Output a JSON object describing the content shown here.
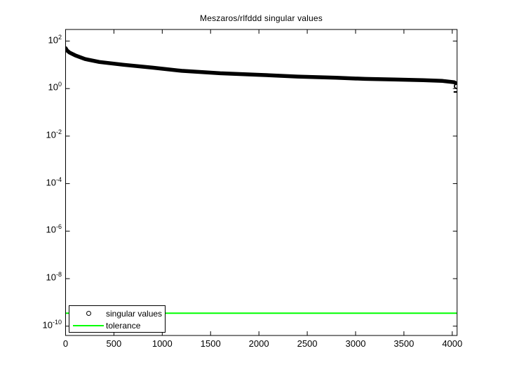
{
  "title": "Meszaros/rlfddd singular values",
  "colors": {
    "curve": "#000000",
    "tolerance": "#00ff00",
    "axis": "#000000",
    "background": "#ffffff"
  },
  "legend": {
    "items": [
      {
        "label": "singular values",
        "marker": "circle-marker"
      },
      {
        "label": "tolerance",
        "marker": "green-line-marker"
      }
    ]
  },
  "axes": {
    "x": {
      "tick_values": [
        0,
        500,
        1000,
        1500,
        2000,
        2500,
        3000,
        3500,
        4000
      ],
      "tick_labels": [
        "0",
        "500",
        "1000",
        "1500",
        "2000",
        "2500",
        "3000",
        "3500",
        "4000"
      ],
      "min": 0,
      "max": 4050
    },
    "y": {
      "scale": "log",
      "base_label": "10",
      "tick_exponents": [
        2,
        0,
        -2,
        -4,
        -6,
        -8,
        -10
      ],
      "view_exponent_range": [
        -10.4,
        2.49
      ]
    }
  },
  "chart_data": {
    "type": "scatter",
    "title": "Meszaros/rlfddd singular values",
    "xlabel": "",
    "ylabel": "",
    "x_range": [
      0,
      4050
    ],
    "y_scale": "log",
    "n_singular_values": 4050,
    "series": [
      {
        "name": "singular values",
        "marker": "o",
        "color": "#000000",
        "points": [
          [
            1,
            50
          ],
          [
            15,
            40
          ],
          [
            40,
            33
          ],
          [
            100,
            25
          ],
          [
            200,
            17.5
          ],
          [
            350,
            13.2
          ],
          [
            600,
            10
          ],
          [
            900,
            7.6
          ],
          [
            1200,
            5.6
          ],
          [
            1600,
            4.4
          ],
          [
            2000,
            3.8
          ],
          [
            2400,
            3.2
          ],
          [
            2800,
            2.85
          ],
          [
            3100,
            2.55
          ],
          [
            3400,
            2.4
          ],
          [
            3700,
            2.25
          ],
          [
            3900,
            2.1
          ],
          [
            4020,
            1.85
          ],
          [
            4035,
            1.7
          ]
        ],
        "tail_markers": [
          {
            "i": 4044,
            "v": 1.25,
            "style": "circle"
          },
          {
            "i": 4047,
            "v": 0.72,
            "style": "dash"
          }
        ]
      },
      {
        "name": "tolerance",
        "type": "hline",
        "color": "#00ff00",
        "value": 3.5e-10
      }
    ],
    "legend_position": "lower-left",
    "grid": false
  }
}
